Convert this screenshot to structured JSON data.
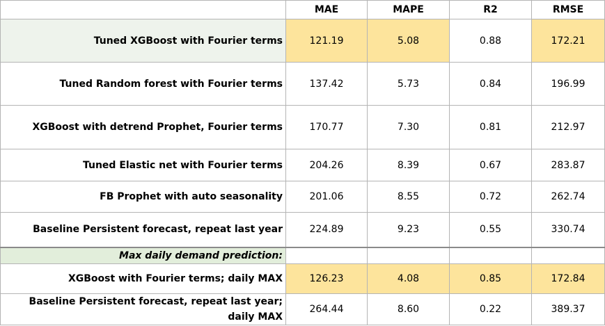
{
  "columns": [
    "MAE",
    "MAPE",
    "R2",
    "RMSE"
  ],
  "rows": [
    {
      "label": "Tuned XGBoost with Fourier terms",
      "values": [
        "121.19",
        "5.08",
        "0.88",
        "172.21"
      ]
    },
    {
      "label": "Tuned Random forest with Fourier terms",
      "values": [
        "137.42",
        "5.73",
        "0.84",
        "196.99"
      ]
    },
    {
      "label": "XGBoost with detrend Prophet, Fourier terms",
      "values": [
        "170.77",
        "7.30",
        "0.81",
        "212.97"
      ]
    },
    {
      "label": "Tuned Elastic net with Fourier terms",
      "values": [
        "204.26",
        "8.39",
        "0.67",
        "283.87"
      ]
    },
    {
      "label": "FB Prophet with auto seasonality",
      "values": [
        "201.06",
        "8.55",
        "0.72",
        "262.74"
      ]
    },
    {
      "label": "Baseline Persistent forecast, repeat last year",
      "values": [
        "224.89",
        "9.23",
        "0.55",
        "330.74"
      ]
    }
  ],
  "section_label": "Max daily demand prediction:",
  "max_rows": [
    {
      "label": "XGBoost with Fourier terms; daily MAX",
      "values": [
        "126.23",
        "4.08",
        "0.85",
        "172.84"
      ]
    },
    {
      "label": "Baseline Persistent forecast, repeat last year; daily MAX",
      "values": [
        "264.44",
        "8.60",
        "0.22",
        "389.37"
      ]
    }
  ],
  "colors": {
    "highlight": "#fde49c",
    "best_row_label": "#eef3ec",
    "section_bg": "#e2eedb"
  }
}
